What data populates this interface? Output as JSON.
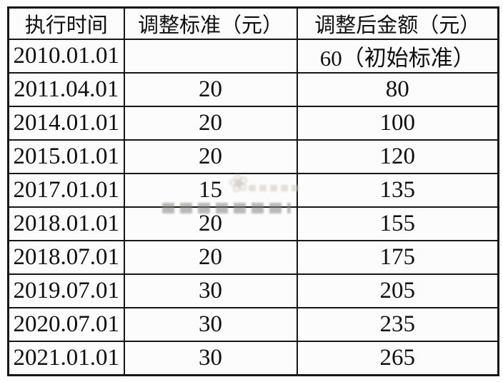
{
  "colors": {
    "border": "#161616",
    "text": "#0f0f0f",
    "background": "#fdfdfd",
    "watermark": "#c4bdb2"
  },
  "table": {
    "headers": [
      "执行时间",
      "调整标准（元）",
      "调整后金额（元）"
    ],
    "rows": [
      [
        "2010.01.01",
        "",
        "60（初始标准）"
      ],
      [
        "2011.04.01",
        "20",
        "80"
      ],
      [
        "2014.01.01",
        "20",
        "100"
      ],
      [
        "2015.01.01",
        "20",
        "120"
      ],
      [
        "2017.01.01",
        "15",
        "135"
      ],
      [
        "2018.01.01",
        "20",
        "155"
      ],
      [
        "2018.07.01",
        "20",
        "175"
      ],
      [
        "2019.07.01",
        "30",
        "205"
      ],
      [
        "2020.07.01",
        "30",
        "235"
      ],
      [
        "2021.01.01",
        "30",
        "265"
      ]
    ]
  }
}
